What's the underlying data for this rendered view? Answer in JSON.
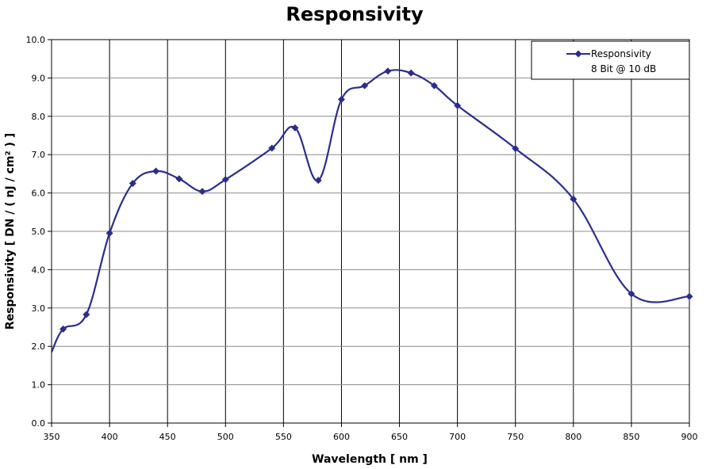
{
  "chart_data": {
    "type": "line",
    "title": "Responsivity",
    "xlabel": "Wavelength [ nm ]",
    "ylabel": "Responsivity [ DN / ( nJ / cm² ) ]",
    "xlim": [
      350,
      900
    ],
    "ylim": [
      0,
      10
    ],
    "xticks": [
      350,
      400,
      450,
      500,
      550,
      600,
      650,
      700,
      750,
      800,
      850,
      900
    ],
    "yticks": [
      0,
      1,
      2,
      3,
      4,
      5,
      6,
      7,
      8,
      9,
      10
    ],
    "xtick_labels": [
      "350",
      "400",
      "450",
      "500",
      "550",
      "600",
      "650",
      "700",
      "750",
      "800",
      "850",
      "900"
    ],
    "ytick_labels": [
      "0.0",
      "1.0",
      "2.0",
      "3.0",
      "4.0",
      "5.0",
      "6.0",
      "7.0",
      "8.0",
      "9.0",
      "10.0"
    ],
    "grid": {
      "vertical": true,
      "horizontal": true
    },
    "legend": {
      "position": "top-right",
      "entries": [
        {
          "label": "Responsivity",
          "sublabel": "8 Bit @ 10 dB"
        }
      ]
    },
    "series": [
      {
        "name": "Responsivity",
        "color": "#2b2d8c",
        "curve_start": {
          "x": 350,
          "y": 1.85
        },
        "x": [
          360,
          380,
          400,
          420,
          440,
          460,
          480,
          500,
          540,
          560,
          580,
          600,
          620,
          640,
          660,
          680,
          700,
          750,
          800,
          850,
          900
        ],
        "y": [
          2.45,
          2.83,
          4.95,
          6.25,
          6.57,
          6.37,
          6.04,
          6.35,
          7.17,
          7.7,
          6.33,
          8.44,
          8.8,
          9.18,
          9.13,
          8.8,
          8.28,
          7.16,
          5.84,
          3.37,
          3.3
        ]
      }
    ]
  }
}
